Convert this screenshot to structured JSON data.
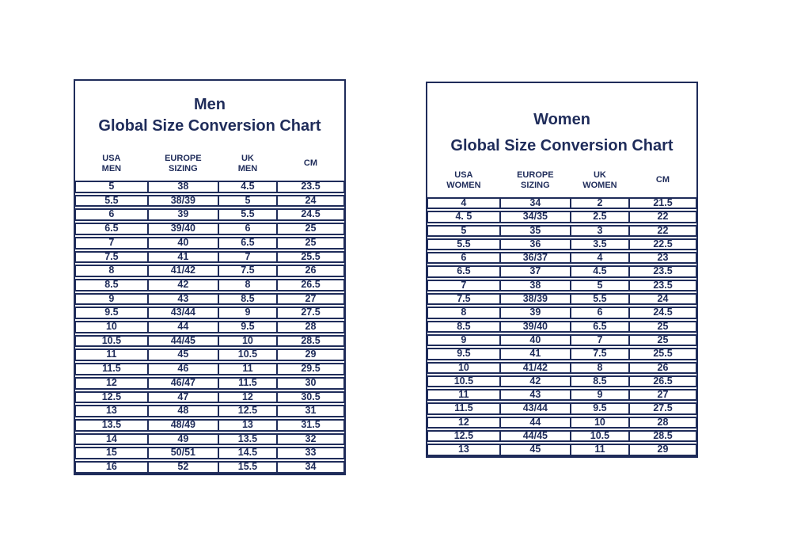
{
  "colors": {
    "navy": "#1f2c5a",
    "background": "#ffffff"
  },
  "chart_data": [
    {
      "type": "table",
      "id": "men",
      "title_line1": "Men",
      "title_line2": "Global Size Conversion Chart",
      "columns": [
        [
          "USA",
          "MEN"
        ],
        [
          "EUROPE",
          "SIZING"
        ],
        [
          "UK",
          "MEN"
        ],
        [
          "CM"
        ]
      ],
      "rows": [
        [
          "5",
          "38",
          "4.5",
          "23.5"
        ],
        [
          "5.5",
          "38/39",
          "5",
          "24"
        ],
        [
          "6",
          "39",
          "5.5",
          "24.5"
        ],
        [
          "6.5",
          "39/40",
          "6",
          "25"
        ],
        [
          "7",
          "40",
          "6.5",
          "25"
        ],
        [
          "7.5",
          "41",
          "7",
          "25.5"
        ],
        [
          "8",
          "41/42",
          "7.5",
          "26"
        ],
        [
          "8.5",
          "42",
          "8",
          "26.5"
        ],
        [
          "9",
          "43",
          "8.5",
          "27"
        ],
        [
          "9.5",
          "43/44",
          "9",
          "27.5"
        ],
        [
          "10",
          "44",
          "9.5",
          "28"
        ],
        [
          "10.5",
          "44/45",
          "10",
          "28.5"
        ],
        [
          "11",
          "45",
          "10.5",
          "29"
        ],
        [
          "11.5",
          "46",
          "11",
          "29.5"
        ],
        [
          "12",
          "46/47",
          "11.5",
          "30"
        ],
        [
          "12.5",
          "47",
          "12",
          "30.5"
        ],
        [
          "13",
          "48",
          "12.5",
          "31"
        ],
        [
          "13.5",
          "48/49",
          "13",
          "31.5"
        ],
        [
          "14",
          "49",
          "13.5",
          "32"
        ],
        [
          "15",
          "50/51",
          "14.5",
          "33"
        ],
        [
          "16",
          "52",
          "15.5",
          "34"
        ]
      ]
    },
    {
      "type": "table",
      "id": "women",
      "title_line1": "Women",
      "title_line2": "Global Size Conversion Chart",
      "columns": [
        [
          "USA",
          "WOMEN"
        ],
        [
          "EUROPE",
          "SIZING"
        ],
        [
          "UK",
          "WOMEN"
        ],
        [
          "CM"
        ]
      ],
      "rows": [
        [
          "4",
          "34",
          "2",
          "21.5"
        ],
        [
          "4. 5",
          "34/35",
          "2.5",
          "22"
        ],
        [
          "5",
          "35",
          "3",
          "22"
        ],
        [
          "5.5",
          "36",
          "3.5",
          "22.5"
        ],
        [
          "6",
          "36/37",
          "4",
          "23"
        ],
        [
          "6.5",
          "37",
          "4.5",
          "23.5"
        ],
        [
          "7",
          "38",
          "5",
          "23.5"
        ],
        [
          "7.5",
          "38/39",
          "5.5",
          "24"
        ],
        [
          "8",
          "39",
          "6",
          "24.5"
        ],
        [
          "8.5",
          "39/40",
          "6.5",
          "25"
        ],
        [
          "9",
          "40",
          "7",
          "25"
        ],
        [
          "9.5",
          "41",
          "7.5",
          "25.5"
        ],
        [
          "10",
          "41/42",
          "8",
          "26"
        ],
        [
          "10.5",
          "42",
          "8.5",
          "26.5"
        ],
        [
          "11",
          "43",
          "9",
          "27"
        ],
        [
          "11.5",
          "43/44",
          "9.5",
          "27.5"
        ],
        [
          "12",
          "44",
          "10",
          "28"
        ],
        [
          "12.5",
          "44/45",
          "10.5",
          "28.5"
        ],
        [
          "13",
          "45",
          "11",
          "29"
        ]
      ]
    }
  ]
}
